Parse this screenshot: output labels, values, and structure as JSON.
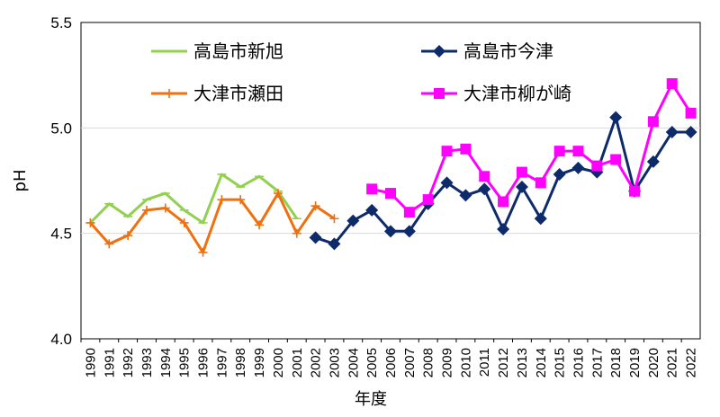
{
  "chart_data": {
    "type": "line",
    "title": "",
    "xlabel": "年度",
    "ylabel": "pH",
    "ylim": [
      4.0,
      5.5
    ],
    "yticks": [
      "4.0",
      "4.5",
      "5.0",
      "5.5"
    ],
    "xlim": [
      1990,
      2022
    ],
    "grid": "horizontal",
    "legend_position": "top, two columns",
    "x": [
      1990,
      1991,
      1992,
      1993,
      1994,
      1995,
      1996,
      1997,
      1998,
      1999,
      2000,
      2001,
      2002,
      2003,
      2004,
      2005,
      2006,
      2007,
      2008,
      2009,
      2010,
      2011,
      2012,
      2013,
      2014,
      2015,
      2016,
      2017,
      2018,
      2019,
      2020,
      2021,
      2022
    ],
    "series": [
      {
        "name": "高島市新旭",
        "color": "#92D050",
        "marker": "dash",
        "x": [
          1990,
          1991,
          1992,
          1993,
          1994,
          1995,
          1996,
          1997,
          1998,
          1999,
          2000,
          2001
        ],
        "values": [
          4.55,
          4.64,
          4.58,
          4.66,
          4.69,
          4.61,
          4.55,
          4.78,
          4.72,
          4.77,
          4.7,
          4.57
        ]
      },
      {
        "name": "大津市瀬田",
        "color": "#F07010",
        "marker": "plus",
        "x": [
          1990,
          1991,
          1992,
          1993,
          1994,
          1995,
          1996,
          1997,
          1998,
          1999,
          2000,
          2001,
          2002,
          2003
        ],
        "values": [
          4.55,
          4.45,
          4.49,
          4.61,
          4.62,
          4.55,
          4.41,
          4.66,
          4.66,
          4.54,
          4.69,
          4.5,
          4.63,
          4.57
        ]
      },
      {
        "name": "高島市今津",
        "color": "#0D2A6B",
        "marker": "diamond",
        "x": [
          2002,
          2003,
          2004,
          2005,
          2006,
          2007,
          2008,
          2009,
          2010,
          2011,
          2012,
          2013,
          2014,
          2015,
          2016,
          2017,
          2018,
          2019,
          2020,
          2021,
          2022
        ],
        "values": [
          4.48,
          4.45,
          4.56,
          4.61,
          4.51,
          4.51,
          4.64,
          4.74,
          4.68,
          4.71,
          4.52,
          4.72,
          4.57,
          4.78,
          4.81,
          4.79,
          5.05,
          4.7,
          4.84,
          4.98,
          4.98
        ]
      },
      {
        "name": "大津市柳が崎",
        "color": "#FF00FF",
        "marker": "square",
        "x": [
          2005,
          2006,
          2007,
          2008,
          2009,
          2010,
          2011,
          2012,
          2013,
          2014,
          2015,
          2016,
          2017,
          2018,
          2019,
          2020,
          2021,
          2022
        ],
        "values": [
          4.71,
          4.69,
          4.6,
          4.66,
          4.89,
          4.9,
          4.77,
          4.65,
          4.79,
          4.74,
          4.89,
          4.89,
          4.82,
          4.85,
          4.7,
          5.03,
          5.21,
          5.07
        ]
      }
    ]
  }
}
